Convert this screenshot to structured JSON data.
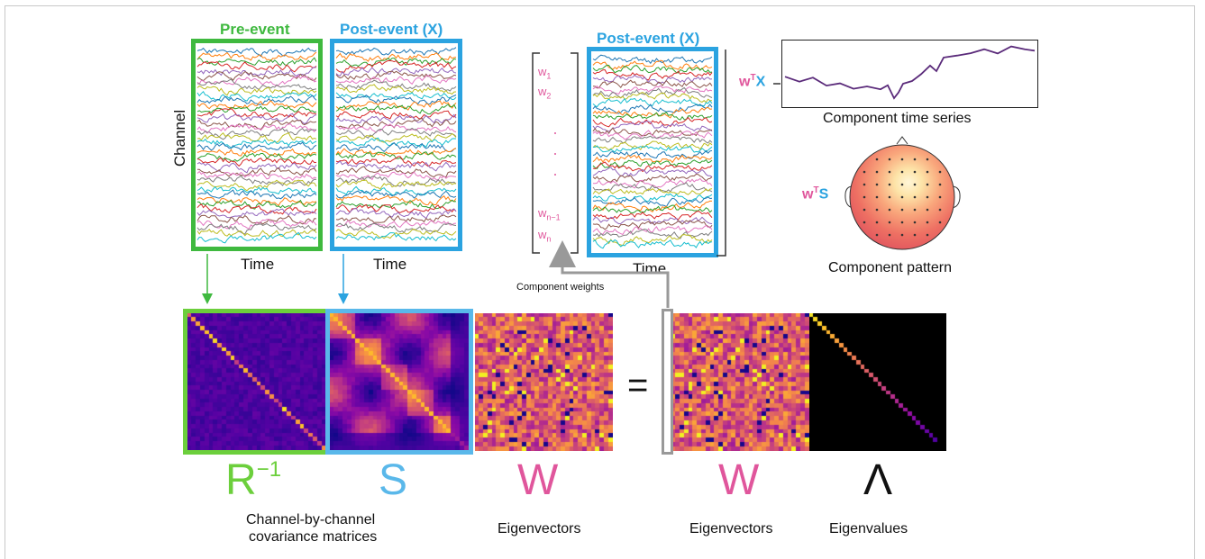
{
  "figure": {
    "pre_event_title": "Pre-event",
    "post_event_title": "Post-event (",
    "post_event_x": "X",
    "post_event_close": ")",
    "channel_label": "Channel",
    "time_label": "Time",
    "component_weights_label": "Component weights",
    "w_labels": [
      "w",
      "w",
      "w",
      "w"
    ],
    "w_subs": [
      "1",
      "2",
      "n−1",
      "n"
    ],
    "wTX_w": "w",
    "wTX_T": "T",
    "wTX_X": "X",
    "wTS_w": "w",
    "wTS_T": "T",
    "wTS_S": "S",
    "component_time_series": "Component time series",
    "component_pattern": "Component pattern",
    "R_symbol": "R",
    "R_exp": "−1",
    "S_symbol": "S",
    "W_symbol": "W",
    "equals": "=",
    "W2_symbol": "W",
    "Lambda_symbol": "Λ",
    "covariance_caption_1": "Channel-by-channel",
    "covariance_caption_2": "covariance matrices",
    "eigenvectors_caption": "Eigenvectors",
    "eigenvectors_caption_2": "Eigenvectors",
    "eigenvalues_caption": "Eigenvalues"
  },
  "colors": {
    "green": "#3fb93f",
    "blue": "#2ba3e0",
    "pink": "#e0569c",
    "plasma_dark": "#1a0a3a",
    "component_line": "#5a2a7a"
  }
}
